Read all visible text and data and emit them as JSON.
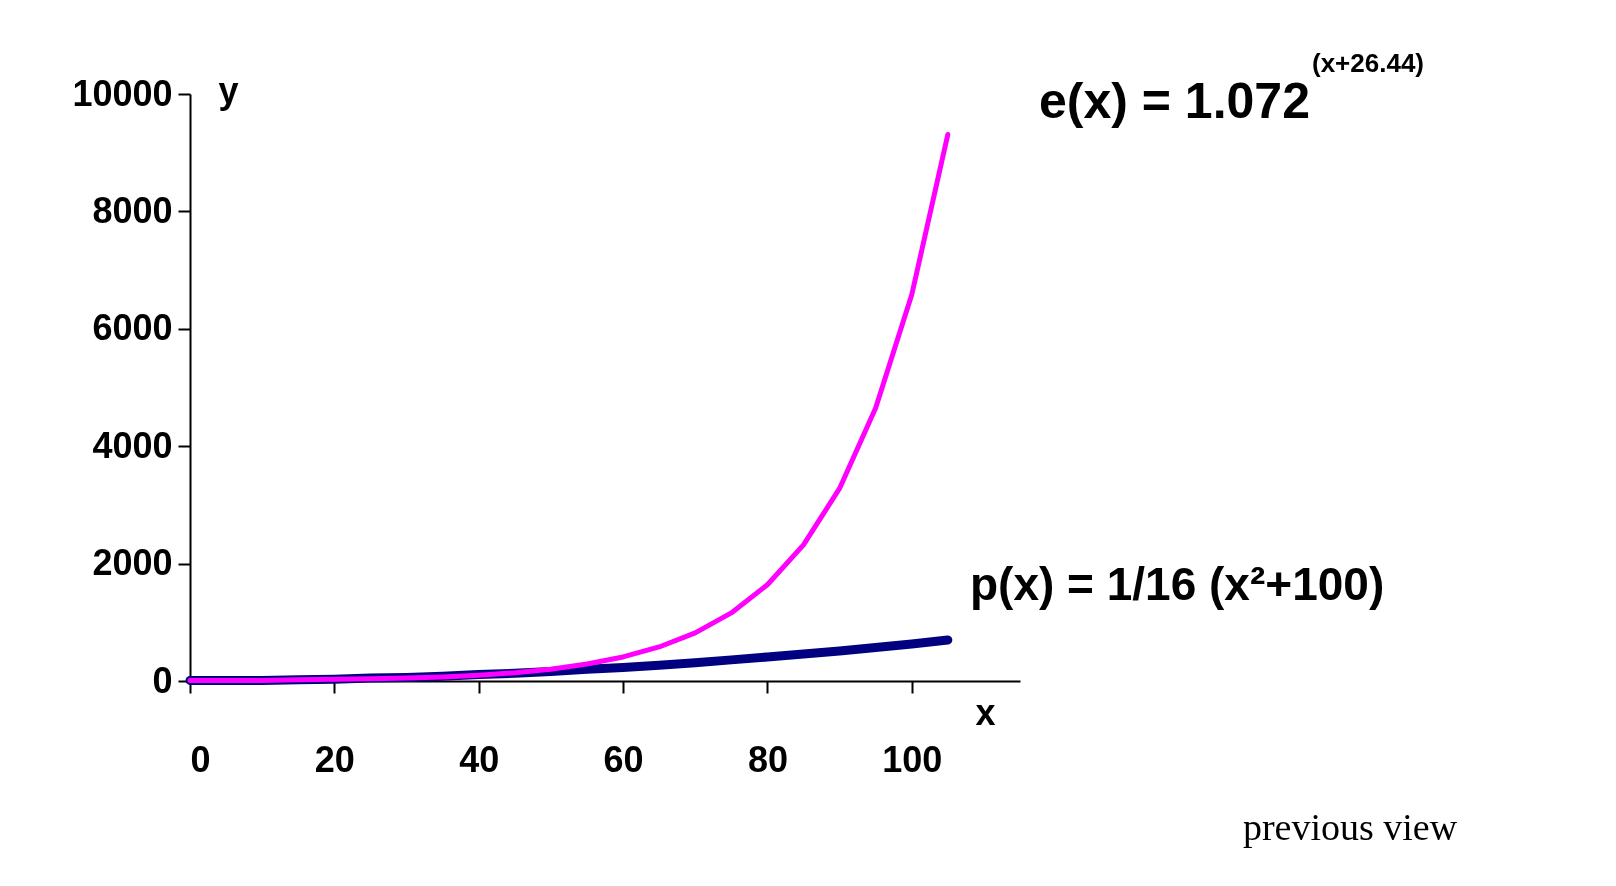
{
  "chart_data": {
    "type": "line",
    "xlabel": "x",
    "ylabel": "y",
    "x": [
      0,
      5,
      10,
      15,
      20,
      25,
      30,
      35,
      40,
      45,
      50,
      55,
      60,
      65,
      70,
      75,
      80,
      85,
      90,
      95,
      100,
      105
    ],
    "series": [
      {
        "name": "e(x) = 1.072$^{(x+26.44)}$",
        "color": "#ff00ff",
        "values": [
          10,
          10,
          10,
          20,
          30,
          40,
          50,
          70,
          100,
          140,
          200,
          290,
          410,
          580,
          820,
          1160,
          1640,
          2320,
          3280,
          4650,
          6580,
          9310
        ]
      },
      {
        "name": "p(x) = 1/16 (x²+100)",
        "color": "#000080",
        "values": [
          10,
          10,
          10,
          20,
          30,
          50,
          60,
          80,
          110,
          130,
          160,
          200,
          230,
          270,
          310,
          360,
          410,
          460,
          510,
          570,
          630,
          700
        ]
      }
    ],
    "xlim": [
      0,
      115
    ],
    "ylim": [
      0,
      10000
    ],
    "xticks": [
      0,
      20,
      40,
      60,
      80,
      100
    ],
    "yticks": [
      0,
      2000,
      4000,
      6000,
      8000,
      10000
    ],
    "grid": false,
    "marker": "none",
    "line_style": "solid",
    "annotations": [
      "previous view"
    ]
  }
}
